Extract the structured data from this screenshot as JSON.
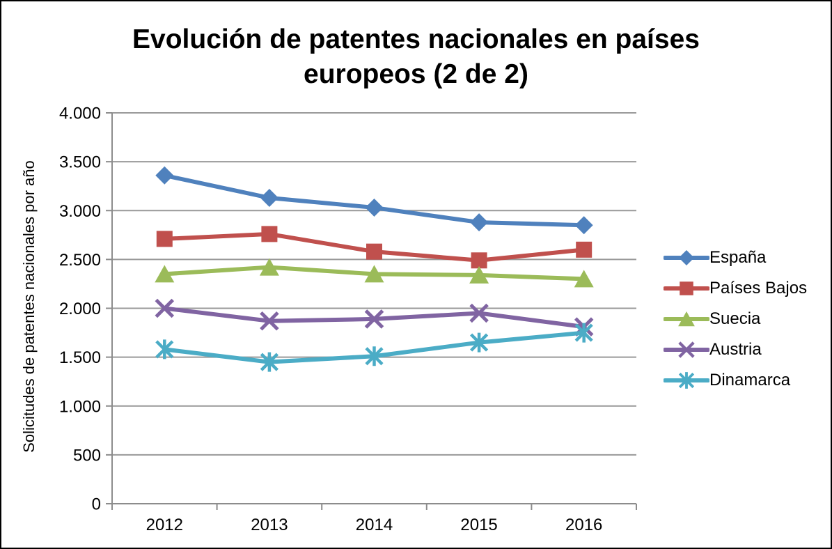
{
  "chart": {
    "title_line1": "Evolución de patentes nacionales en países",
    "title_line2": "europeos (2 de 2)"
  },
  "chart_data": {
    "type": "line",
    "title": "Evolución de patentes nacionales en países europeos (2 de 2)",
    "xlabel": "",
    "ylabel": "Solicitudes de patentes nacionales por año",
    "categories": [
      "2012",
      "2013",
      "2014",
      "2015",
      "2016"
    ],
    "series": [
      {
        "name": "España",
        "color": "#4F81BD",
        "marker": "diamond",
        "values": [
          3360,
          3130,
          3030,
          2880,
          2850
        ]
      },
      {
        "name": "Países Bajos",
        "color": "#C0504D",
        "marker": "square",
        "values": [
          2710,
          2760,
          2580,
          2490,
          2600
        ]
      },
      {
        "name": "Suecia",
        "color": "#9BBB59",
        "marker": "triangle",
        "values": [
          2350,
          2420,
          2350,
          2340,
          2300
        ]
      },
      {
        "name": "Austria",
        "color": "#8064A2",
        "marker": "x",
        "values": [
          2000,
          1870,
          1890,
          1950,
          1810
        ]
      },
      {
        "name": "Dinamarca",
        "color": "#4BACC6",
        "marker": "asterisk",
        "values": [
          1580,
          1450,
          1510,
          1650,
          1750
        ]
      }
    ],
    "ylim": [
      0,
      4000
    ],
    "y_ticks": [
      {
        "value": 0,
        "label": "0"
      },
      {
        "value": 500,
        "label": "500"
      },
      {
        "value": 1000,
        "label": "1.000"
      },
      {
        "value": 1500,
        "label": "1.500"
      },
      {
        "value": 2000,
        "label": "2.000"
      },
      {
        "value": 2500,
        "label": "2.500"
      },
      {
        "value": 3000,
        "label": "3.000"
      },
      {
        "value": 3500,
        "label": "3.500"
      },
      {
        "value": 4000,
        "label": "4.000"
      }
    ],
    "grid": true,
    "legend_position": "right",
    "colors": {
      "gridline": "#999999",
      "axis": "#8C8C8C",
      "text": "#000000",
      "background": "#FFFFFF",
      "border": "#000000"
    }
  }
}
